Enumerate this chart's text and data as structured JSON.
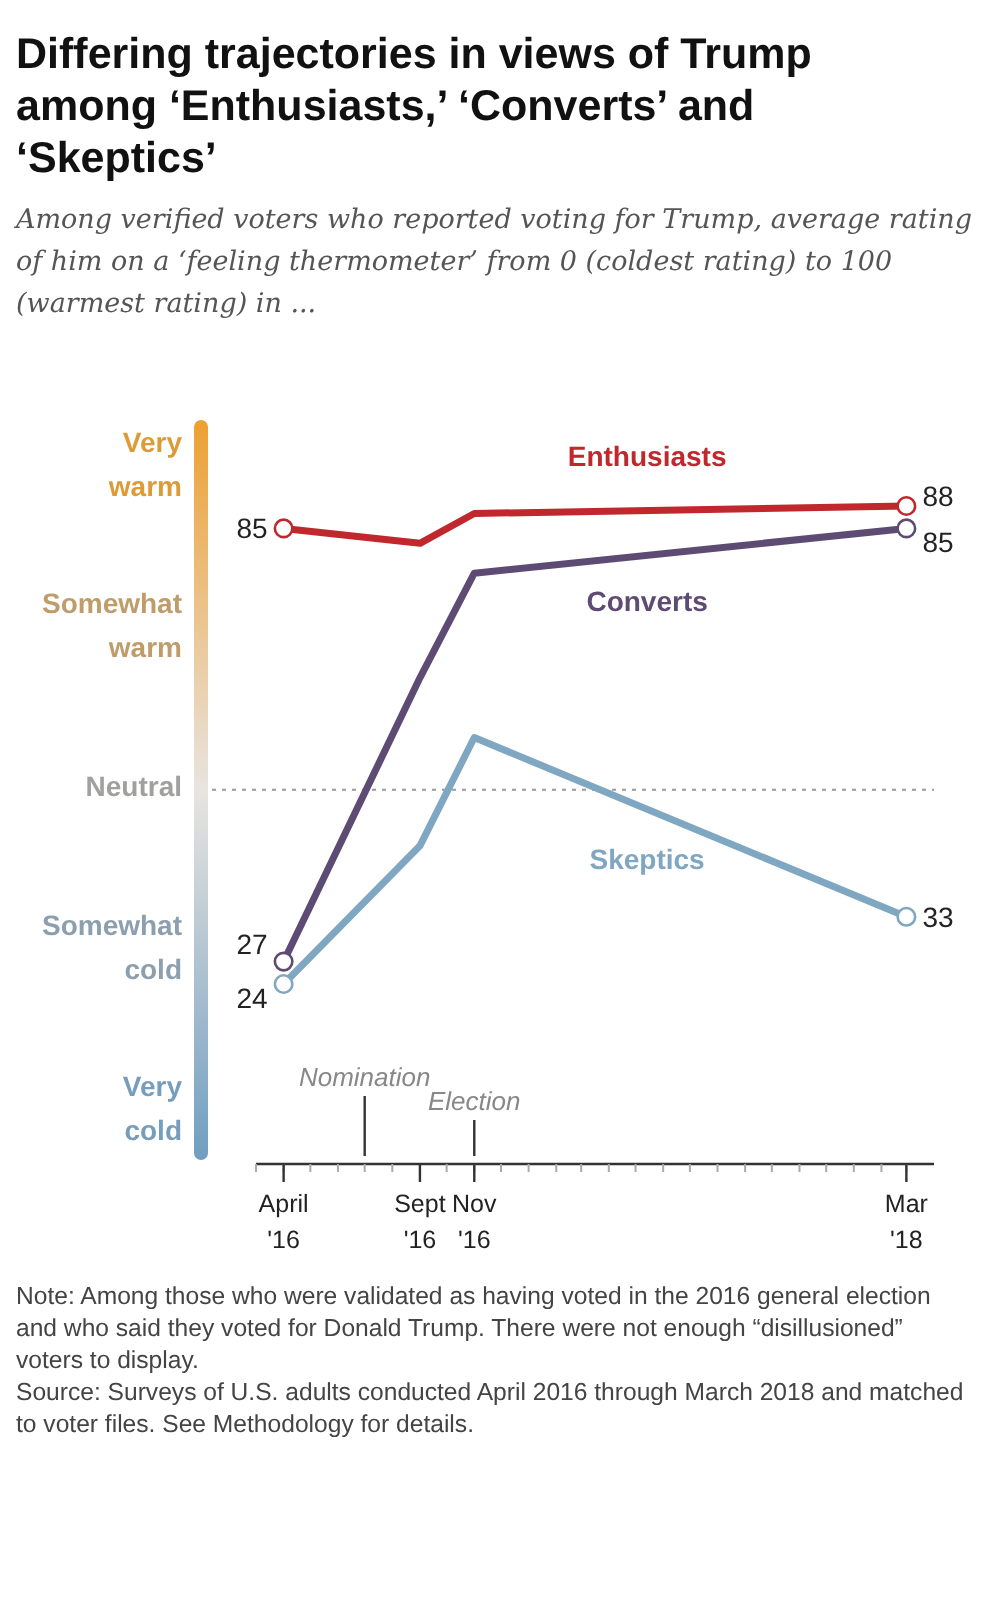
{
  "chart_data": {
    "type": "line",
    "title": "Differing trajectories in views of Trump among ‘Enthusiasts,’ ‘Converts’ and ‘Skeptics’",
    "subtitle": "Among verified voters who reported voting for Trump, average rating of him on a ‘feeling thermometer’ from 0 (coldest rating) to 100 (warmest rating) in ...",
    "x": [
      "2016-04",
      "2016-09",
      "2016-11",
      "2018-03"
    ],
    "xlim": [
      "2016-03",
      "2018-04"
    ],
    "xticks": [
      {
        "value": "2016-04",
        "label": "April '16"
      },
      {
        "value": "2016-09",
        "label": "Sept '16"
      },
      {
        "value": "2016-11",
        "label": "Nov '16"
      },
      {
        "value": "2018-03",
        "label": "Mar '18"
      }
    ],
    "series": [
      {
        "name": "Enthusiasts",
        "color": "#c0282d",
        "values": [
          85,
          83,
          87,
          88
        ],
        "value_labels": [
          "85",
          null,
          null,
          "88"
        ]
      },
      {
        "name": "Converts",
        "color": "#5e4b74",
        "values": [
          27,
          65,
          79,
          85
        ],
        "value_labels": [
          "27",
          null,
          null,
          "85"
        ]
      },
      {
        "name": "Skeptics",
        "color": "#7fa7c2",
        "values": [
          24,
          42.5,
          57,
          33
        ],
        "value_labels": [
          "24",
          null,
          null,
          "33"
        ]
      }
    ],
    "ref_lines": [
      {
        "axis": "y",
        "value": 50,
        "line_style": "dotted",
        "color": "#999999"
      },
      {
        "axis": "x",
        "value": "2016-07",
        "label": "Nomination",
        "color": "#333333"
      },
      {
        "axis": "x",
        "value": "2016-11",
        "label": "Election",
        "color": "#333333"
      }
    ],
    "marker": "circle",
    "annotations": [
      "Very warm",
      "Somewhat warm",
      "Neutral",
      "Somewhat cold",
      "Very cold",
      "Note: Among those who were validated as having voted in the 2016 general election and who said they voted for Donald Trump. There were not enough “disillusioned” voters to display.",
      "Source: Surveys of U.S. adults conducted April 2016 through March 2018 and matched to voter files. See Methodology for details."
    ]
  }
}
